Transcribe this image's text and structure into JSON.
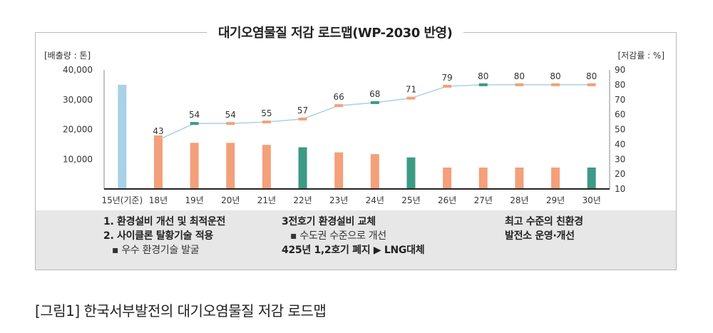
{
  "title": "대기오염물질 저감 로드맵(WP-2030 반영)",
  "caption": "[그림1] 한국서부발전의 대기오염물질 저감 로드맵",
  "notes": {
    "col1": {
      "line1": "1. 환경설비 개선 및 최적운전",
      "line2": "2. 사이클론 탈황기술 적용",
      "sub1": "▪ 우수 환경기술 발굴"
    },
    "col2": {
      "line1": "3전호기 환경설비 교체",
      "sub1": "▪ 수도권 수준으로 개선",
      "line2": "425년 1,2호기 폐지 ▶ LNG대체"
    },
    "col3": {
      "line1": "최고 수준의 친환경",
      "line2": "발전소 운영·개선"
    }
  },
  "chart_data": {
    "type": "bar",
    "categories": [
      "15년(기준)",
      "18년",
      "19년",
      "20년",
      "21년",
      "22년",
      "23년",
      "24년",
      "25년",
      "26년",
      "27년",
      "28년",
      "29년",
      "30년"
    ],
    "series": [
      {
        "name": "배출량",
        "type": "bar",
        "axis": "left",
        "values": [
          35000,
          18000,
          15500,
          15500,
          14800,
          14000,
          12300,
          11700,
          10600,
          7200,
          7200,
          7200,
          7200,
          7200
        ],
        "colors": [
          "#a9d1e8",
          "#f4a07a",
          "#f4a07a",
          "#f4a07a",
          "#f4a07a",
          "#3d9a85",
          "#f4a07a",
          "#f4a07a",
          "#3d9a85",
          "#f4a07a",
          "#f4a07a",
          "#f4a07a",
          "#f4a07a",
          "#3d9a85"
        ]
      },
      {
        "name": "저감률",
        "type": "line",
        "axis": "right",
        "values": [
          null,
          43,
          54,
          54,
          55,
          57,
          66,
          68,
          71,
          79,
          80,
          80,
          80,
          80
        ],
        "labels": [
          "",
          "43",
          "54",
          "54",
          "55",
          "57",
          "66",
          "68",
          "71",
          "79",
          "80",
          "80",
          "80",
          "80"
        ],
        "line_color": "#a9d1e8",
        "marker_colors": [
          "",
          "#f4a07a",
          "#3d9a85",
          "#f4a07a",
          "#f4a07a",
          "#f4a07a",
          "#f4a07a",
          "#3d9a85",
          "#f4a07a",
          "#f4a07a",
          "#3d9a85",
          "#f4a07a",
          "#f4a07a",
          "#f4a07a"
        ]
      }
    ],
    "left_axis": {
      "label": "[배출량 : 톤]",
      "ticks": [
        10000,
        20000,
        30000,
        40000
      ],
      "tick_labels": [
        "10,000",
        "20,000",
        "30,000",
        "40,000"
      ],
      "range": [
        0,
        40000
      ]
    },
    "right_axis": {
      "label": "[저감률 : %]",
      "ticks": [
        10,
        20,
        30,
        40,
        50,
        60,
        70,
        80,
        90
      ],
      "tick_labels": [
        "10",
        "20",
        "30",
        "40",
        "50",
        "60",
        "70",
        "80",
        "90"
      ],
      "range": [
        10,
        90
      ]
    },
    "grid": false
  }
}
